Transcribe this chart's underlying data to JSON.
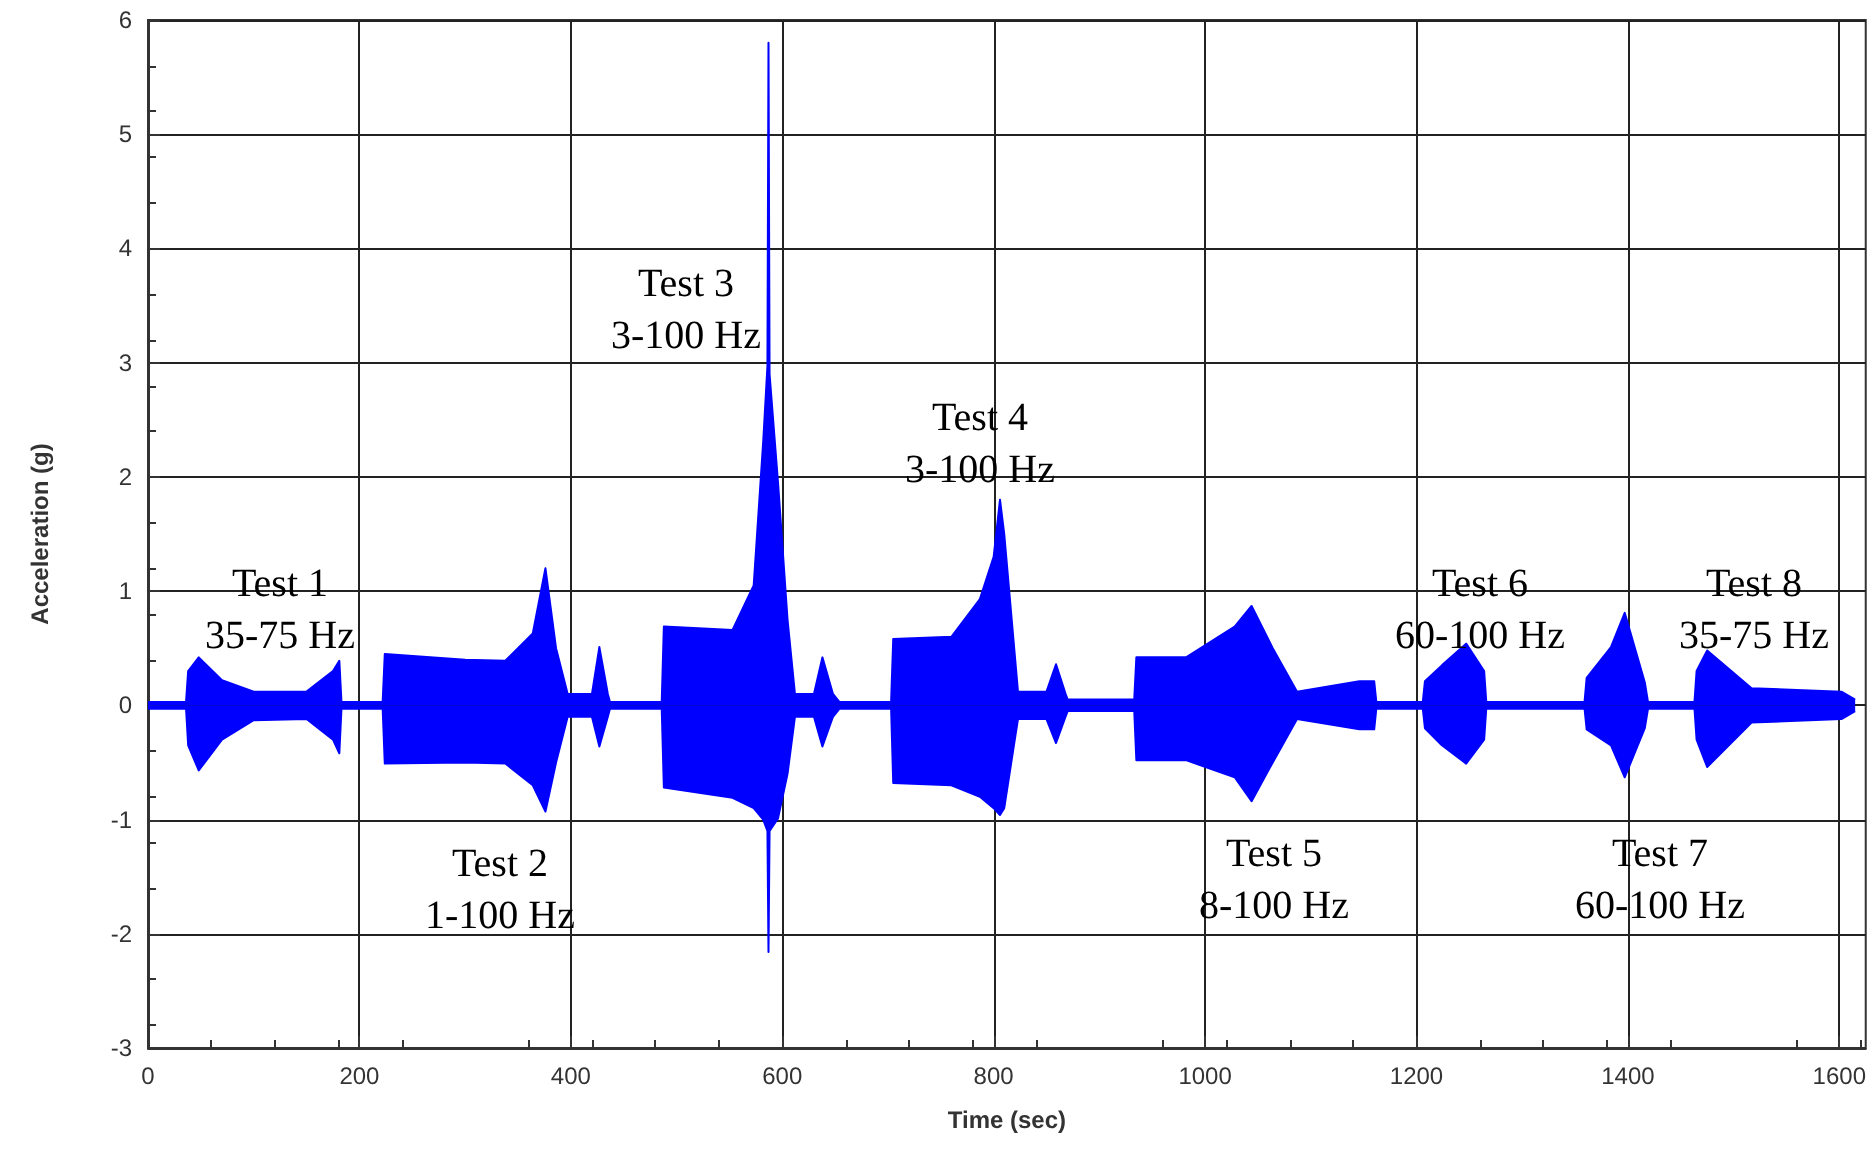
{
  "chart_data": {
    "type": "area",
    "xlabel": "Time (sec)",
    "ylabel": "Acceleration (g)",
    "xlim": [
      0,
      1625
    ],
    "xticks": [
      0,
      200,
      400,
      600,
      800,
      1000,
      1200,
      1400,
      1600
    ],
    "ylim": [
      -3,
      6
    ],
    "yticks": [
      -3,
      -2,
      -1,
      0,
      1,
      2,
      3,
      4,
      5,
      6
    ],
    "grid": true,
    "x": [
      0,
      36,
      38,
      48,
      70,
      100,
      150,
      175,
      181,
      183,
      222,
      224,
      300,
      338,
      364,
      376,
      386,
      397,
      420,
      427,
      435,
      437,
      486,
      488,
      553,
      573,
      582,
      586,
      587,
      588,
      596,
      605,
      612,
      630,
      638,
      648,
      654,
      703,
      705,
      760,
      787,
      800,
      806,
      810,
      823,
      850,
      859,
      868,
      870,
      933,
      935,
      982,
      1028,
      1044,
      1064,
      1087,
      1146,
      1160,
      1162,
      1206,
      1208,
      1224,
      1247,
      1264,
      1266,
      1359,
      1361,
      1384,
      1397,
      1416,
      1419,
      1463,
      1465,
      1475,
      1517,
      1602,
      1615
    ],
    "series": [
      {
        "color": "#0000ff",
        "values": [
          0.03,
          0.03,
          0.3,
          0.42,
          0.22,
          0.12,
          0.12,
          0.3,
          0.39,
          0.03,
          0.03,
          0.45,
          0.4,
          0.39,
          0.63,
          1.2,
          0.5,
          0.1,
          0.1,
          0.51,
          0.1,
          0.03,
          0.03,
          0.69,
          0.66,
          1.05,
          2.31,
          2.97,
          5.8,
          2.9,
          1.95,
          0.75,
          0.1,
          0.1,
          0.42,
          0.1,
          0.03,
          0.03,
          0.58,
          0.6,
          0.93,
          1.3,
          1.8,
          1.5,
          0.12,
          0.12,
          0.36,
          0.1,
          0.05,
          0.05,
          0.42,
          0.42,
          0.69,
          0.87,
          0.5,
          0.12,
          0.21,
          0.21,
          0.03,
          0.03,
          0.21,
          0.35,
          0.54,
          0.3,
          0.03,
          0.03,
          0.24,
          0.51,
          0.81,
          0.2,
          0.03,
          0.03,
          0.3,
          0.48,
          0.15,
          0.12,
          0.05
        ]
      },
      {
        "color": "#0000fe",
        "values": [
          -0.03,
          -0.03,
          -0.35,
          -0.57,
          -0.3,
          -0.13,
          -0.12,
          -0.3,
          -0.42,
          -0.03,
          -0.03,
          -0.51,
          -0.5,
          -0.51,
          -0.7,
          -0.93,
          -0.5,
          -0.1,
          -0.1,
          -0.36,
          -0.1,
          -0.03,
          -0.03,
          -0.72,
          -0.81,
          -0.9,
          -1.0,
          -1.1,
          -2.16,
          -1.1,
          -0.99,
          -0.6,
          -0.1,
          -0.1,
          -0.36,
          -0.1,
          -0.03,
          -0.03,
          -0.68,
          -0.7,
          -0.8,
          -0.9,
          -0.96,
          -0.9,
          -0.12,
          -0.12,
          -0.33,
          -0.1,
          -0.05,
          -0.05,
          -0.48,
          -0.48,
          -0.63,
          -0.84,
          -0.5,
          -0.12,
          -0.21,
          -0.21,
          -0.03,
          -0.03,
          -0.2,
          -0.35,
          -0.51,
          -0.3,
          -0.03,
          -0.03,
          -0.21,
          -0.35,
          -0.63,
          -0.2,
          -0.03,
          -0.03,
          -0.3,
          -0.54,
          -0.15,
          -0.12,
          -0.05
        ]
      }
    ],
    "annotations": [
      "Test 1\n35-75 Hz",
      "Test 2\n1-100 Hz",
      "Test 3\n3-100 Hz",
      "Test 4\n3-100 Hz",
      "Test 5\n8-100 Hz",
      "Test 6\n60-100 Hz",
      "Test 7\n60-100 Hz",
      "Test 8\n35-75 Hz"
    ]
  }
}
